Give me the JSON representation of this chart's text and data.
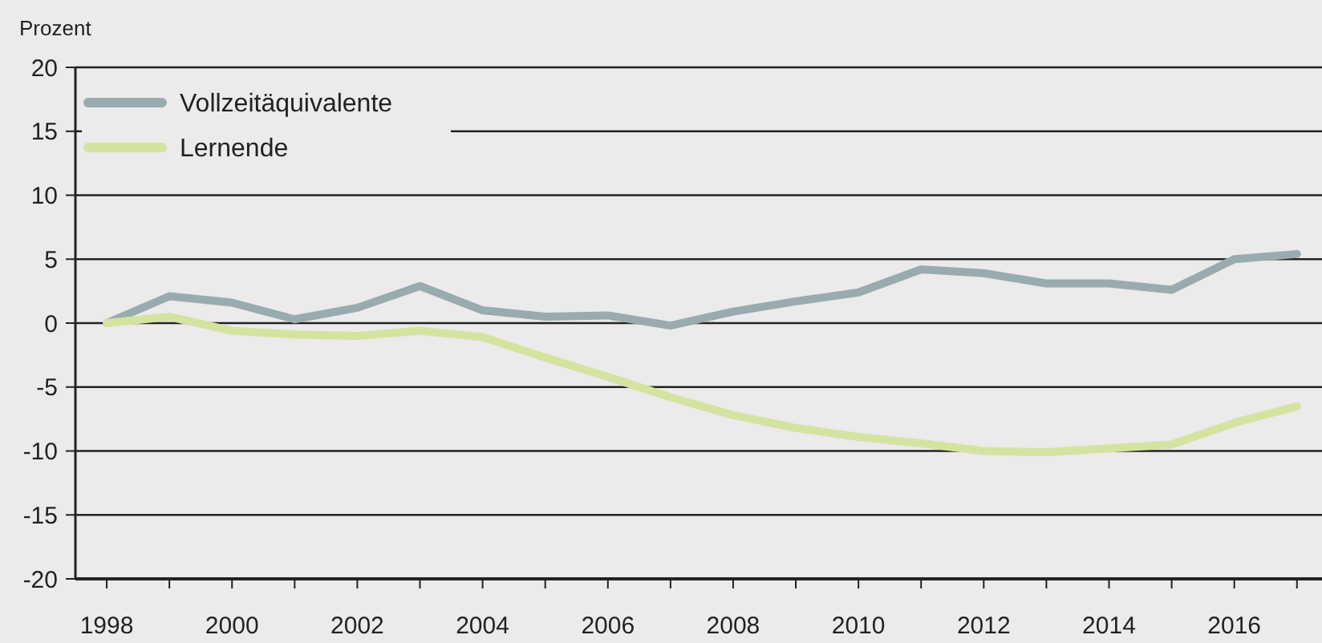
{
  "chart_data": {
    "type": "line",
    "ylabel": "Prozent",
    "x": [
      1998,
      1999,
      2000,
      2001,
      2002,
      2003,
      2004,
      2005,
      2006,
      2007,
      2008,
      2009,
      2010,
      2011,
      2012,
      2013,
      2014,
      2015,
      2016,
      2017
    ],
    "series": [
      {
        "name": "Vollzeitäquivalente",
        "color": "#9aabb0",
        "values": [
          0,
          2.1,
          1.6,
          0.3,
          1.2,
          2.9,
          1.0,
          0.5,
          0.6,
          -0.2,
          0.9,
          1.7,
          2.4,
          4.2,
          3.9,
          3.1,
          3.1,
          2.6,
          5.0,
          5.4
        ]
      },
      {
        "name": "Lernende",
        "color": "#d4e3a0",
        "values": [
          0,
          0.5,
          -0.6,
          -0.9,
          -1.0,
          -0.6,
          -1.1,
          -2.7,
          -4.2,
          -5.8,
          -7.2,
          -8.2,
          -8.9,
          -9.4,
          -10.0,
          -10.1,
          -9.8,
          -9.5,
          -7.8,
          -6.5
        ]
      }
    ],
    "xlim": [
      1997.5,
      2017.4
    ],
    "xticks": [
      1998,
      {
        "value": 1999,
        "label": null
      },
      2000,
      {
        "value": 2001,
        "label": null
      },
      2002,
      {
        "value": 2003,
        "label": null
      },
      2004,
      {
        "value": 2005,
        "label": null
      },
      2006,
      {
        "value": 2007,
        "label": null
      },
      2008,
      {
        "value": 2009,
        "label": null
      },
      2010,
      {
        "value": 2011,
        "label": null
      },
      2012,
      {
        "value": 2013,
        "label": null
      },
      2014,
      {
        "value": 2015,
        "label": null
      },
      2016,
      {
        "value": 2017,
        "label": null
      }
    ],
    "ylim": [
      -20,
      20
    ],
    "yticks": [
      -20,
      -15,
      -10,
      -5,
      0,
      5,
      10,
      15,
      20
    ],
    "grid": "y",
    "legend": "top left",
    "marker": "none",
    "line_style": "solid"
  }
}
